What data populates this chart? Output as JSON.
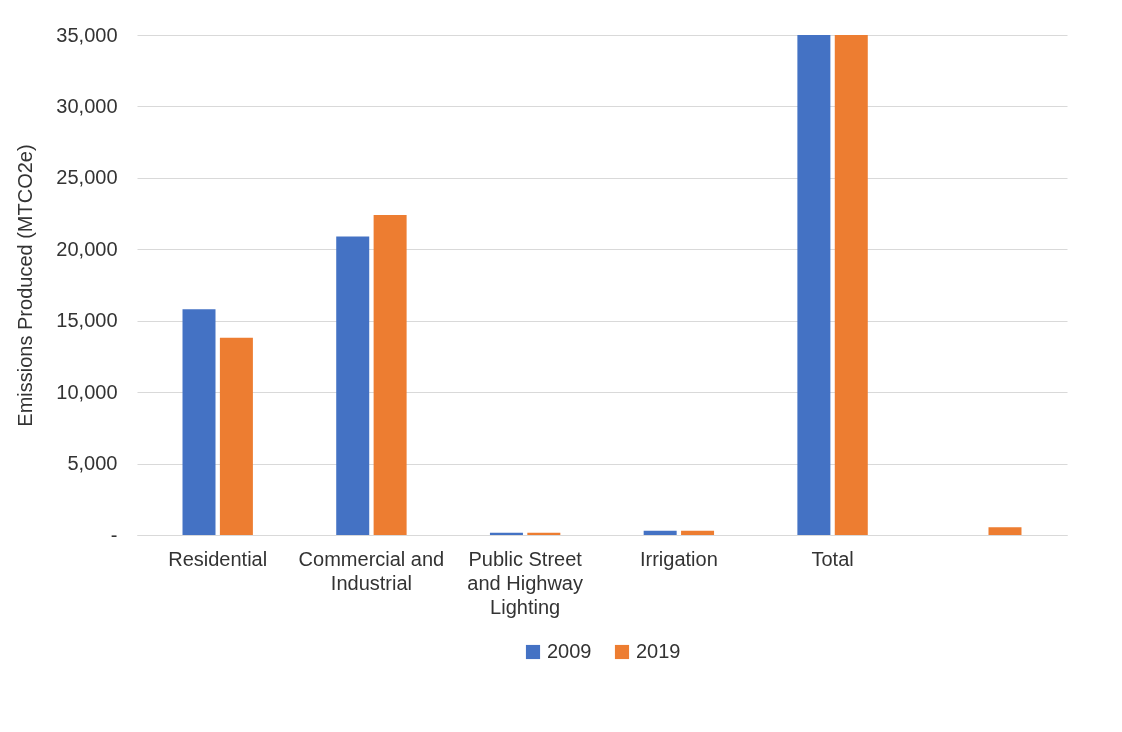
{
  "chart_data": {
    "type": "bar",
    "ylabel": "Emissions Produced (MTCO2e)",
    "categories": [
      "Residential",
      "Commercial and Industrial",
      "Public Street and Highway Lighting",
      "Irrigation",
      "Total",
      null
    ],
    "series": [
      {
        "name": "2009",
        "color": "#4472c4",
        "values": [
          15800,
          20900,
          150,
          300,
          35000,
          null
        ]
      },
      {
        "name": "2019",
        "color": "#ed7d31",
        "values": [
          13800,
          22400,
          150,
          300,
          35000,
          550
        ]
      }
    ],
    "ylim": [
      0,
      35000
    ],
    "yticks": [
      {
        "value": 0,
        "label": "-"
      },
      {
        "value": 5000,
        "label": "5,000"
      },
      {
        "value": 10000,
        "label": "10,000"
      },
      {
        "value": 15000,
        "label": "15,000"
      },
      {
        "value": 20000,
        "label": "20,000"
      },
      {
        "value": 25000,
        "label": "25,000"
      },
      {
        "value": 30000,
        "label": "30,000"
      },
      {
        "value": 35000,
        "label": "35,000"
      }
    ],
    "grid": "y",
    "legend": "bottom"
  }
}
